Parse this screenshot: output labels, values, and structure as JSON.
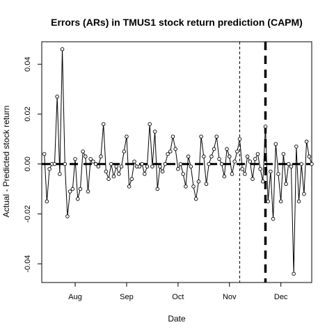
{
  "chart_data": {
    "type": "line",
    "title": "Errors (ARs) in TMUS1 stock return prediction (CAPM)",
    "xlabel": "Date",
    "ylabel": "Actual - Predicted stock return",
    "x_tick_labels": [
      "Aug",
      "Sep",
      "Oct",
      "Nov",
      "Dec"
    ],
    "y_tick_labels": [
      "-0.04",
      "-0.02",
      "0.00",
      "0.02",
      "0.04"
    ],
    "y_ticks": [
      -0.04,
      -0.02,
      0.0,
      0.02,
      0.04
    ],
    "ylim": [
      -0.0475,
      0.049
    ],
    "zero_line": 0.0,
    "event_lines": [
      {
        "position_index": 76,
        "style": "thin-dashed"
      },
      {
        "position_index": 86,
        "style": "thick-dashed"
      }
    ],
    "x_tick_index": [
      12,
      32,
      52,
      72,
      92
    ],
    "x_index_range": [
      -1,
      104
    ],
    "series": [
      {
        "values": [
          0.004,
          -0.015,
          -0.002,
          0.0,
          0.0,
          0.027,
          -0.004,
          0.046,
          0.0,
          -0.021,
          -0.011,
          -0.01,
          0.002,
          -0.014,
          -0.01,
          0.005,
          0.003,
          -0.011,
          0.002,
          0.001,
          0.0,
          -0.001,
          0.003,
          0.016,
          -0.003,
          -0.006,
          0.0,
          -0.005,
          -0.001,
          -0.004,
          -0.001,
          0.005,
          0.011,
          -0.009,
          -0.006,
          0.001,
          -0.001,
          -0.001,
          0.0,
          -0.004,
          -0.001,
          0.016,
          -0.001,
          0.013,
          -0.01,
          -0.001,
          -0.003,
          0.0,
          0.004,
          0.005,
          0.011,
          0.006,
          -0.002,
          0.0,
          -0.004,
          -0.009,
          0.003,
          -0.001,
          -0.009,
          -0.014,
          -0.007,
          0.011,
          0.003,
          -0.008,
          0.0,
          0.003,
          0.006,
          0.011,
          0.002,
          0.0,
          -0.005,
          0.006,
          0.003,
          -0.004,
          0.001,
          0.005,
          0.01,
          -0.002,
          -0.004,
          0.003,
          0.001,
          -0.006,
          0.002,
          0.004,
          -0.002,
          -0.007,
          0.015,
          -0.015,
          -0.003,
          -0.022,
          0.008,
          -0.004,
          -0.015,
          0.004,
          -0.008,
          0.0,
          -0.001,
          -0.044,
          0.007,
          -0.015,
          0.0,
          -0.012,
          0.009,
          0.003,
          0.0
        ]
      }
    ]
  },
  "colors": {
    "line": "#000000",
    "point_fill": "#ffffff",
    "axis": "#000000",
    "background": "#ffffff"
  }
}
